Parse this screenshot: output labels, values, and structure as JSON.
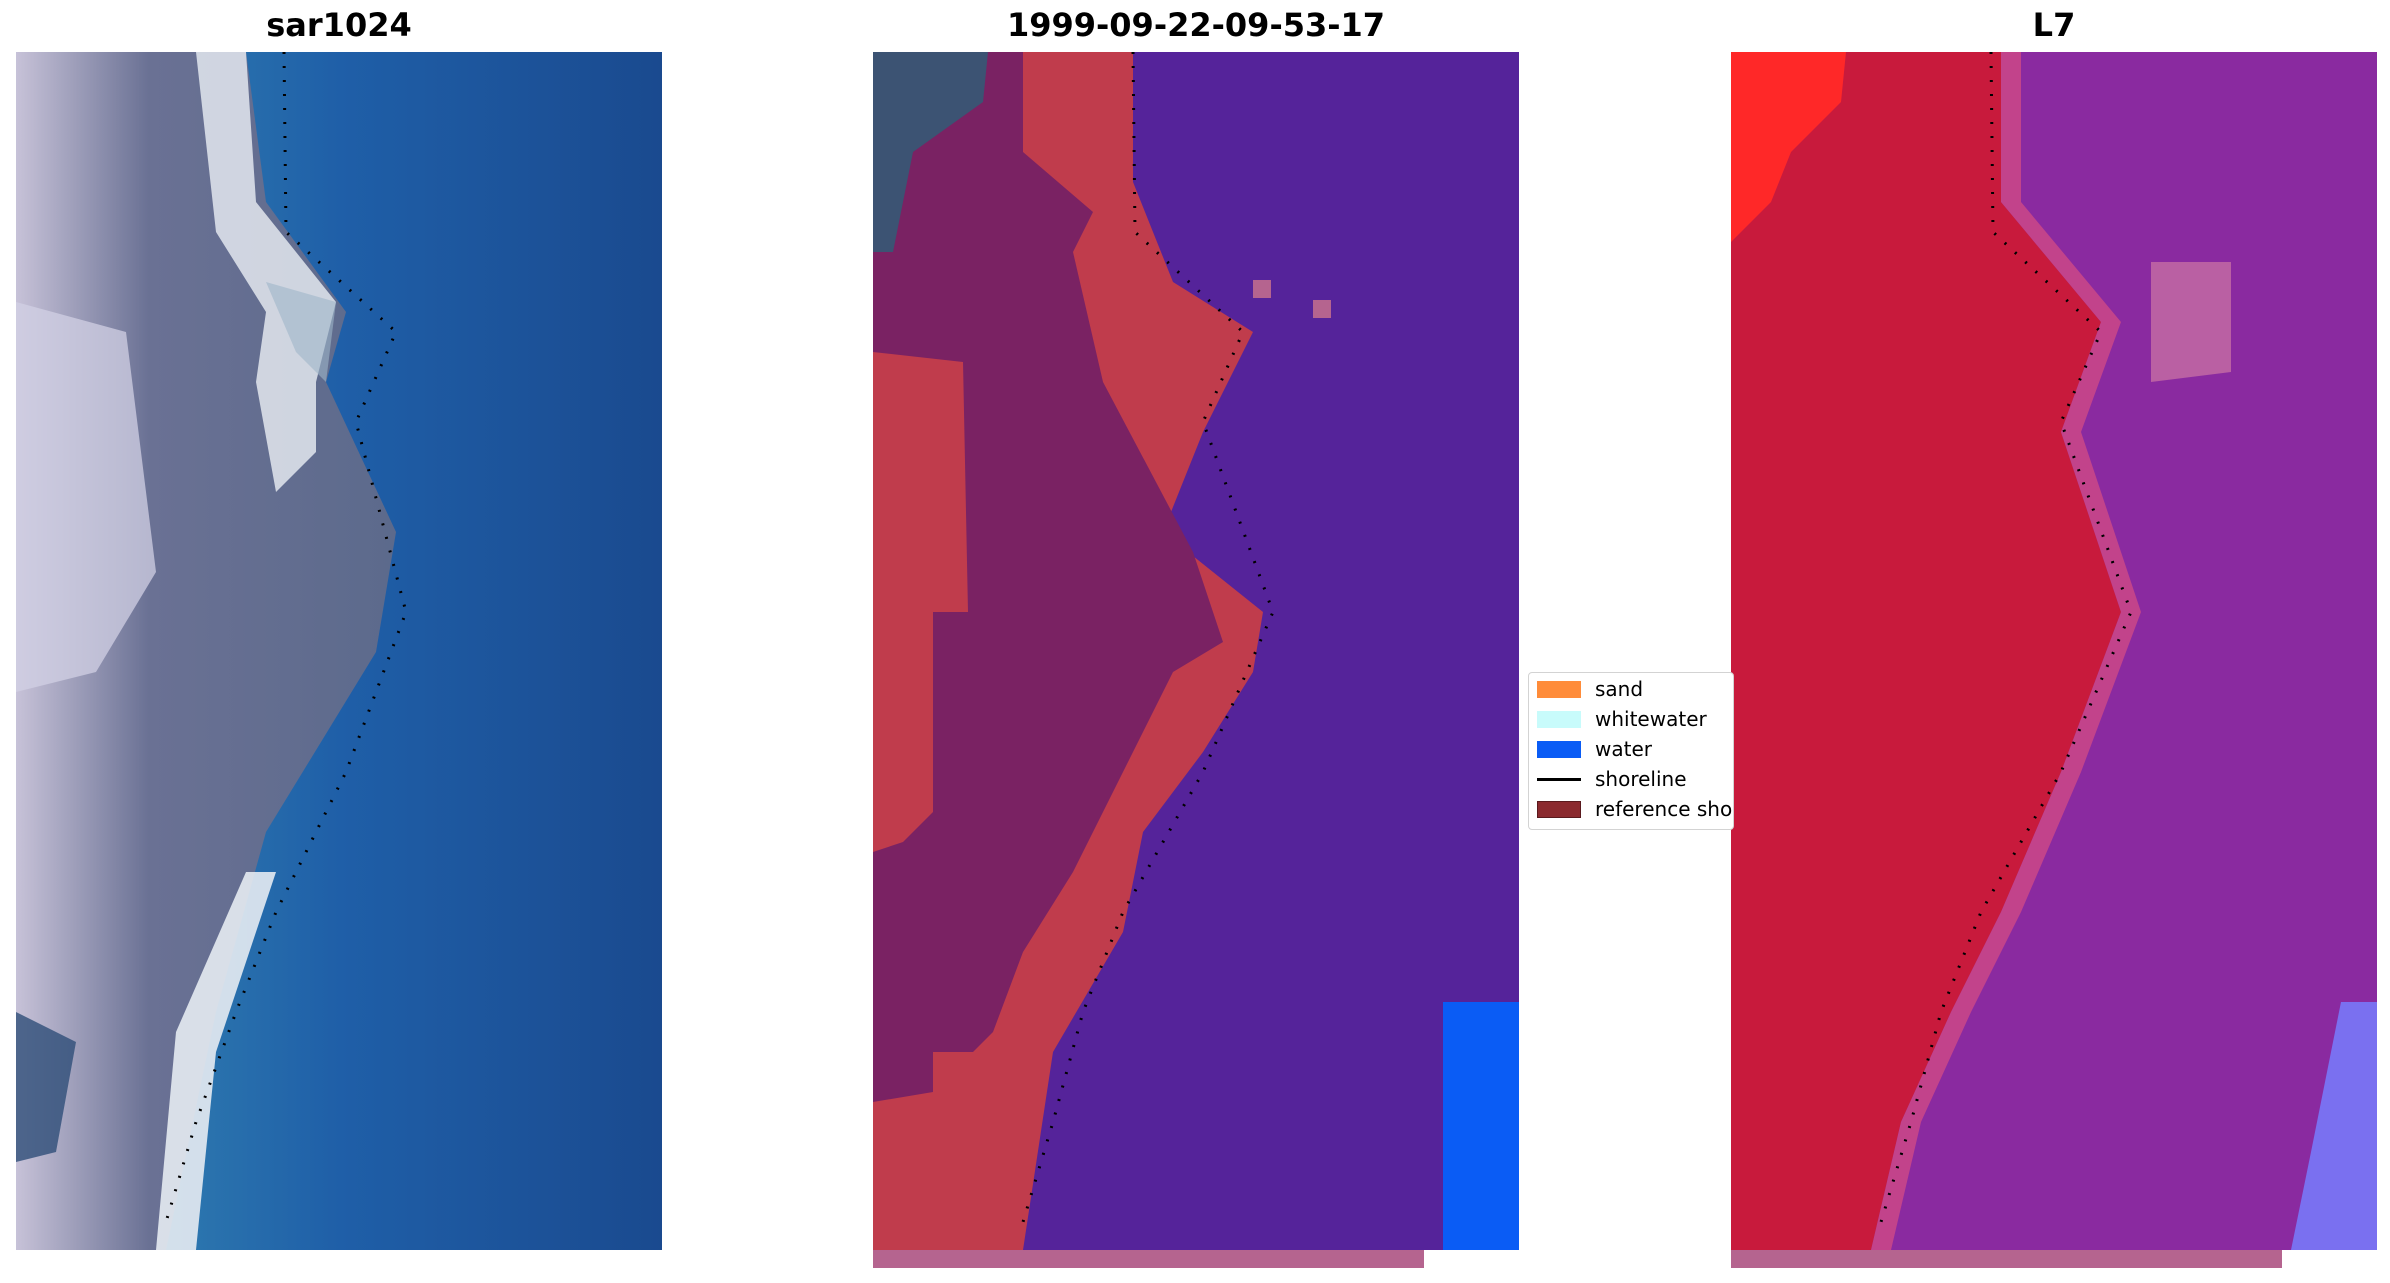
{
  "panels": [
    {
      "title": "sar1024",
      "image": "rgb-satellite-image"
    },
    {
      "title": "1999-09-22-09-53-17",
      "image": "classified-image"
    },
    {
      "title": "L7",
      "image": "mndwi-image"
    }
  ],
  "legend": {
    "items": [
      {
        "label": "sand",
        "color": "#ff8c3a",
        "kind": "patch"
      },
      {
        "label": "whitewater",
        "color": "#c8fbfb",
        "kind": "patch"
      },
      {
        "label": "water",
        "color": "#0a5cf5",
        "kind": "patch"
      },
      {
        "label": "shoreline",
        "color": "#000000",
        "kind": "line"
      },
      {
        "label": "reference shoreline",
        "color": "#8b2a2f",
        "kind": "patch"
      }
    ]
  },
  "colors": {
    "rgb_water": "#1f5fa8",
    "rgb_land": "#6d7596",
    "rgb_sand": "#e4e9f0",
    "class_land": "#7a2263",
    "class_sand": "#c03c4c",
    "class_water": "#55239a",
    "class_bright_water": "#0a5cf5",
    "mndwi_land": "#c81a3c",
    "mndwi_water": "#8a2aa0",
    "mndwi_bright": "#ff2828",
    "strip": "#b5648f"
  }
}
